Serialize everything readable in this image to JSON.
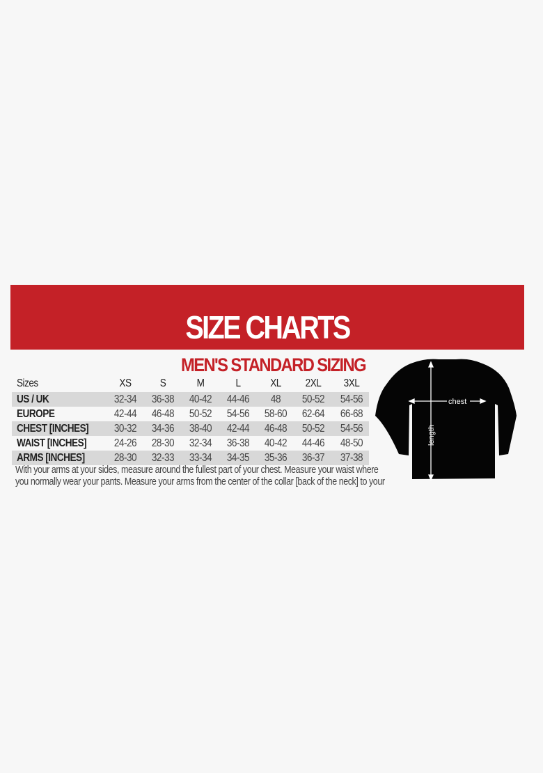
{
  "banner": {
    "title": "SIZE CHARTS",
    "color": "#c42127"
  },
  "subtitle": "MEN'S STANDARD SIZING",
  "table": {
    "header_label": "Sizes",
    "sizes": [
      "XS",
      "S",
      "M",
      "L",
      "XL",
      "2XL",
      "3XL"
    ],
    "rows": [
      {
        "label": "US / UK",
        "values": [
          "32-34",
          "36-38",
          "40-42",
          "44-46",
          "48",
          "50-52",
          "54-56"
        ]
      },
      {
        "label": "EUROPE",
        "values": [
          "42-44",
          "46-48",
          "50-52",
          "54-56",
          "58-60",
          "62-64",
          "66-68"
        ]
      },
      {
        "label": "CHEST [INCHES]",
        "values": [
          "30-32",
          "34-36",
          "38-40",
          "42-44",
          "46-48",
          "50-52",
          "54-56"
        ]
      },
      {
        "label": "WAIST [INCHES]",
        "values": [
          "24-26",
          "28-30",
          "32-34",
          "36-38",
          "40-42",
          "44-46",
          "48-50"
        ]
      },
      {
        "label": "ARMS [INCHES]",
        "values": [
          "28-30",
          "32-33",
          "33-34",
          "34-35",
          "35-36",
          "36-37",
          "37-38"
        ]
      }
    ]
  },
  "note": "With your arms at your sides, measure around the fullest part of your chest. Measure your waist where you normally wear your pants. Measure your arms from the center of the collar [back of the neck] to your wrist",
  "diagram": {
    "chest_label": "chest",
    "length_label": "length"
  }
}
